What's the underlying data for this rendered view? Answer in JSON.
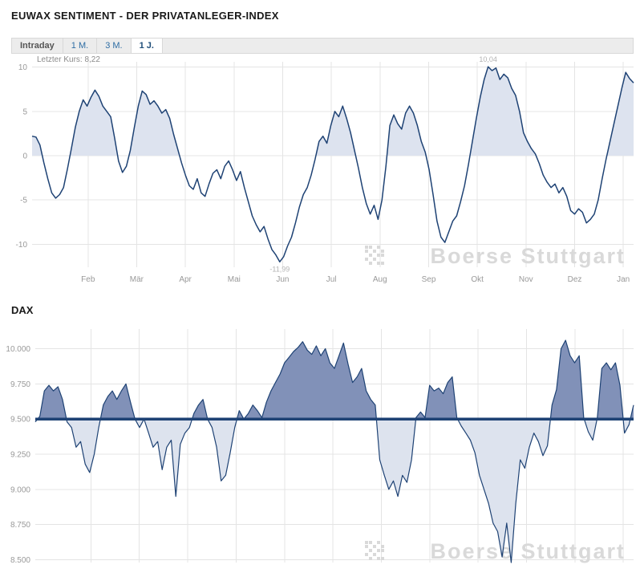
{
  "tabs": {
    "items": [
      {
        "label": "Intraday"
      },
      {
        "label": "1 M."
      },
      {
        "label": "3 M."
      },
      {
        "label": "1 J."
      }
    ],
    "active": "1 J."
  },
  "watermark_text": "Boerse Stuttgart",
  "colors": {
    "line": "#1e4274",
    "sentiment_fill": "#dde3ef",
    "dax_fill_above": "#8191b8",
    "dax_fill_below": "#dde3ee",
    "grid": "#e4e4e4",
    "axis_text": "#999999",
    "annotation": "#b3b3b3",
    "watermark": "#d9d9d9",
    "tab_link": "#2e6da4"
  },
  "chart_data": [
    {
      "type": "line",
      "name": "euwax-sentiment",
      "title": "EUWAX SENTIMENT - DER PRIVATANLEGER-INDEX",
      "last_price_label": "Letzter Kurs: 8,22",
      "x_tick_labels": [
        "Feb",
        "Mär",
        "Apr",
        "Mai",
        "Jun",
        "Jul",
        "Aug",
        "Sep",
        "Okt",
        "Nov",
        "Dez",
        "Jan"
      ],
      "y_ticks": [
        10,
        5,
        0,
        -5,
        -10
      ],
      "ylim": [
        -12.6,
        10.6
      ],
      "baseline": 0,
      "grid": true,
      "legend": "none",
      "annotations": [
        {
          "text": "10,04",
          "at": "max"
        },
        {
          "text": "-11,99",
          "at": "min"
        }
      ],
      "values": [
        2.2,
        2.1,
        1.2,
        -0.8,
        -2.6,
        -4.2,
        -4.8,
        -4.4,
        -3.6,
        -1.5,
        0.8,
        3.2,
        5.0,
        6.3,
        5.6,
        6.6,
        7.4,
        6.7,
        5.6,
        5.0,
        4.4,
        2.0,
        -0.6,
        -1.9,
        -1.2,
        0.6,
        3.2,
        5.6,
        7.3,
        6.9,
        5.8,
        6.2,
        5.6,
        4.8,
        5.2,
        4.2,
        2.4,
        0.8,
        -0.8,
        -2.2,
        -3.4,
        -3.8,
        -2.6,
        -4.2,
        -4.6,
        -3.2,
        -2.0,
        -1.6,
        -2.6,
        -1.2,
        -0.6,
        -1.6,
        -2.8,
        -1.8,
        -3.6,
        -5.2,
        -6.8,
        -7.8,
        -8.6,
        -8.0,
        -9.4,
        -10.6,
        -11.2,
        -11.99,
        -11.4,
        -10.2,
        -9.2,
        -7.6,
        -5.8,
        -4.4,
        -3.6,
        -2.2,
        -0.4,
        1.6,
        2.2,
        1.4,
        3.4,
        5.0,
        4.4,
        5.6,
        4.2,
        2.6,
        0.6,
        -1.4,
        -3.6,
        -5.4,
        -6.6,
        -5.6,
        -7.2,
        -5.0,
        -1.2,
        3.4,
        4.6,
        3.6,
        3.0,
        4.8,
        5.6,
        4.8,
        3.4,
        1.6,
        0.4,
        -1.6,
        -4.4,
        -7.4,
        -9.2,
        -9.8,
        -8.6,
        -7.4,
        -6.8,
        -5.2,
        -3.4,
        -1.0,
        1.6,
        4.2,
        6.6,
        8.6,
        10.04,
        9.6,
        9.9,
        8.6,
        9.2,
        8.8,
        7.6,
        6.8,
        5.0,
        2.6,
        1.6,
        0.8,
        0.2,
        -0.9,
        -2.2,
        -3.0,
        -3.6,
        -3.2,
        -4.2,
        -3.6,
        -4.6,
        -6.2,
        -6.6,
        -6.0,
        -6.4,
        -7.6,
        -7.2,
        -6.6,
        -5.0,
        -2.6,
        -0.4,
        1.6,
        3.6,
        5.6,
        7.6,
        9.4,
        8.7,
        8.22
      ]
    },
    {
      "type": "area",
      "name": "dax",
      "title": "DAX",
      "y_ticks": [
        10000,
        9750,
        9500,
        9250,
        9000,
        8750,
        8500
      ],
      "y_tick_labels": [
        "10.000",
        "9.750",
        "9.500",
        "9.250",
        "9.000",
        "8.750",
        "8.500"
      ],
      "ylim": [
        8480,
        10140
      ],
      "baseline": 9500,
      "grid": true,
      "legend": "none",
      "values": [
        9480,
        9520,
        9700,
        9740,
        9700,
        9730,
        9640,
        9480,
        9440,
        9300,
        9340,
        9180,
        9120,
        9250,
        9440,
        9600,
        9660,
        9700,
        9640,
        9700,
        9750,
        9620,
        9500,
        9440,
        9500,
        9400,
        9300,
        9340,
        9140,
        9300,
        9350,
        8950,
        9320,
        9400,
        9440,
        9540,
        9600,
        9640,
        9500,
        9440,
        9300,
        9060,
        9100,
        9260,
        9440,
        9560,
        9500,
        9540,
        9600,
        9560,
        9510,
        9620,
        9700,
        9760,
        9820,
        9900,
        9940,
        9980,
        10010,
        10050,
        9990,
        9960,
        10020,
        9950,
        10000,
        9900,
        9860,
        9950,
        10040,
        9890,
        9760,
        9800,
        9860,
        9700,
        9640,
        9600,
        9210,
        9100,
        9000,
        9060,
        8950,
        9100,
        9050,
        9210,
        9510,
        9550,
        9510,
        9740,
        9700,
        9720,
        9680,
        9760,
        9800,
        9510,
        9450,
        9400,
        9350,
        9260,
        9100,
        9000,
        8900,
        8760,
        8700,
        8520,
        8760,
        8480,
        8900,
        9210,
        9150,
        9300,
        9400,
        9340,
        9240,
        9310,
        9600,
        9710,
        10000,
        10060,
        9950,
        9900,
        9950,
        9510,
        9410,
        9350,
        9510,
        9860,
        9900,
        9850,
        9900,
        9740,
        9400,
        9460,
        9600
      ]
    }
  ]
}
